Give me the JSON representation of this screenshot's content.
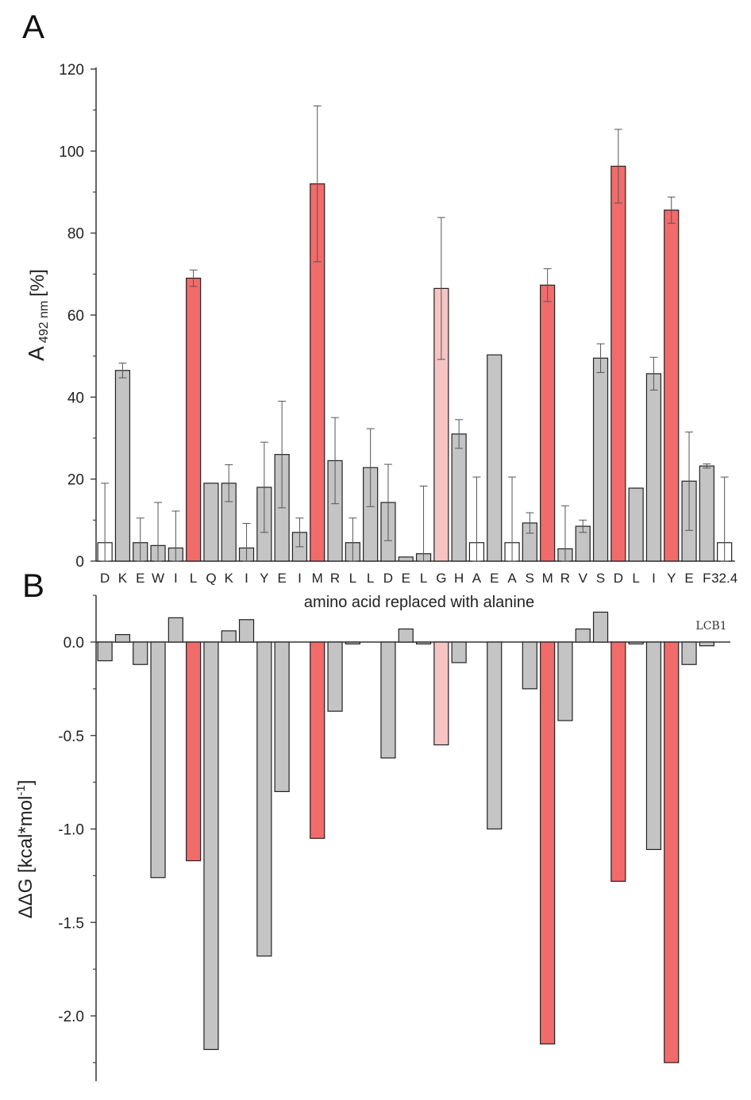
{
  "colors": {
    "grey": "#c4c4c4",
    "red": "#f26b6b",
    "light_red": "#f7c4c4",
    "white": "#ffffff"
  },
  "chart_data": [
    {
      "panel": "A",
      "type": "bar",
      "xlabel": "amino acid replaced with alanine",
      "ylabel": {
        "main": "A",
        "subscript": "492 nm",
        "unit": "[%]"
      },
      "ylim": [
        0,
        120
      ],
      "yticks": [
        "0",
        "20",
        "40",
        "60",
        "80",
        "100",
        "120"
      ],
      "categories": [
        "D",
        "K",
        "E",
        "W",
        "I",
        "L",
        "Q",
        "K",
        "I",
        "Y",
        "E",
        "I",
        "M",
        "R",
        "L",
        "L",
        "D",
        "E",
        "L",
        "G",
        "H",
        "A",
        "E",
        "A",
        "S",
        "M",
        "R",
        "V",
        "S",
        "D",
        "L",
        "I",
        "Y",
        "E",
        "F",
        "32.4"
      ],
      "values": [
        4.5,
        46.5,
        4.5,
        3.8,
        3.2,
        69,
        19,
        19,
        3.2,
        18,
        26,
        7,
        92,
        24.5,
        4.5,
        22.8,
        14.3,
        1,
        1.8,
        66.5,
        31,
        4.5,
        50.3,
        4.5,
        9.3,
        67.3,
        3,
        8.5,
        49.5,
        96.3,
        17.8,
        45.7,
        85.6,
        19.5,
        23.2,
        4.5
      ],
      "errors": [
        14.5,
        1.8,
        6,
        10.5,
        9,
        2,
        0,
        4.5,
        6,
        11,
        13,
        3.5,
        19,
        10.5,
        6,
        9.5,
        9.3,
        0,
        16.5,
        17.3,
        3.5,
        16,
        0,
        16,
        2.5,
        4,
        10.5,
        1.5,
        3.5,
        9,
        0,
        4,
        3.2,
        12,
        0.5,
        16
      ],
      "colors": [
        "white",
        "grey",
        "grey",
        "grey",
        "grey",
        "red",
        "grey",
        "grey",
        "grey",
        "grey",
        "grey",
        "grey",
        "red",
        "grey",
        "grey",
        "grey",
        "grey",
        "grey",
        "grey",
        "light_red",
        "grey",
        "white",
        "grey",
        "white",
        "grey",
        "red",
        "grey",
        "grey",
        "grey",
        "red",
        "grey",
        "grey",
        "red",
        "grey",
        "grey",
        "white"
      ]
    },
    {
      "panel": "B",
      "type": "bar",
      "ylabel": "ΔΔG [kcal*mol-1]",
      "ylabel_parts": {
        "main": "ΔΔG [kcal*mol",
        "sup": "-1",
        "end": "]"
      },
      "ylim": [
        -2.35,
        0.25
      ],
      "yticks": [
        "0.0",
        "-0.5",
        "-1.0",
        "-1.5",
        "-2.0"
      ],
      "reference_label": "LCB1",
      "values": [
        -0.1,
        0.04,
        -0.12,
        -1.26,
        0.13,
        -1.17,
        -2.18,
        0.06,
        0.12,
        -1.68,
        -0.8,
        null,
        -1.05,
        -0.37,
        -0.01,
        null,
        -0.62,
        0.07,
        -0.01,
        -0.55,
        -0.11,
        null,
        -1.0,
        null,
        -0.25,
        -2.15,
        -0.42,
        0.07,
        0.16,
        -1.28,
        -0.01,
        -1.11,
        -2.25,
        -0.12,
        -0.02,
        null
      ],
      "colors": [
        "grey",
        "grey",
        "grey",
        "grey",
        "grey",
        "red",
        "grey",
        "grey",
        "grey",
        "grey",
        "grey",
        "grey",
        "red",
        "grey",
        "grey",
        "grey",
        "grey",
        "grey",
        "grey",
        "light_red",
        "grey",
        "grey",
        "grey",
        "grey",
        "grey",
        "red",
        "grey",
        "grey",
        "grey",
        "red",
        "grey",
        "grey",
        "red",
        "grey",
        "grey",
        "grey"
      ]
    }
  ]
}
